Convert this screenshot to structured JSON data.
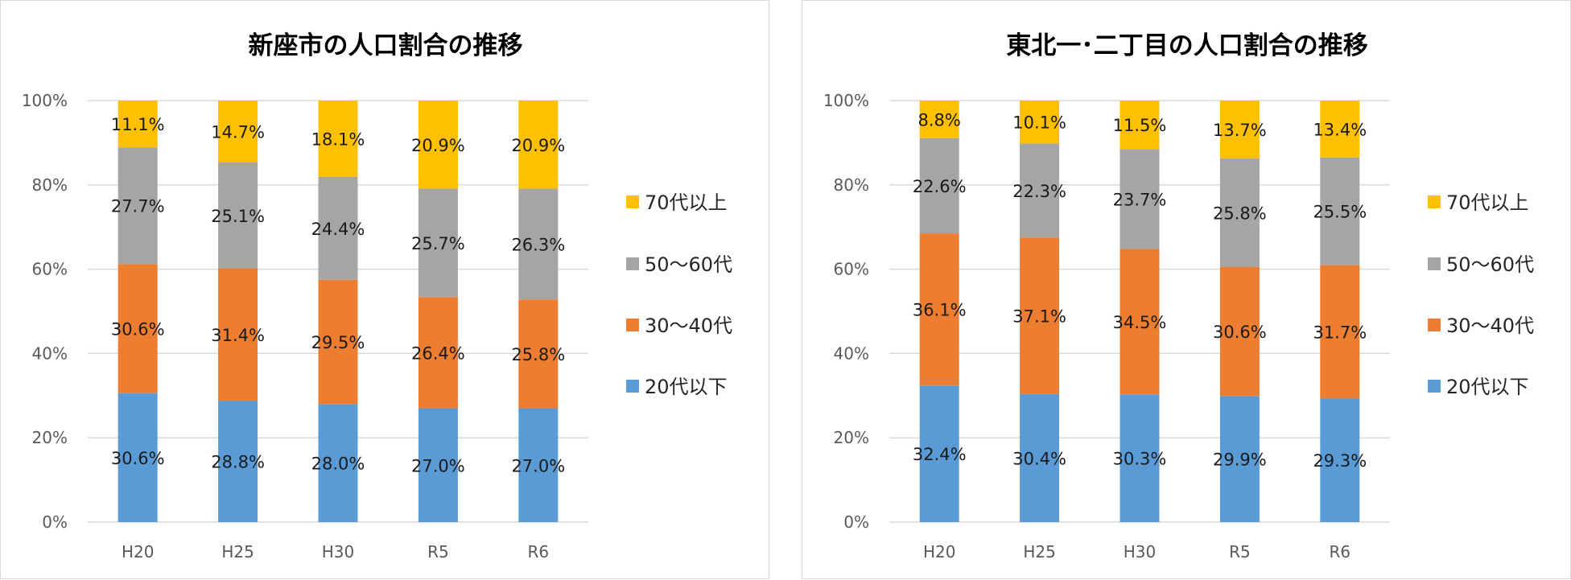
{
  "chart_data": [
    {
      "type": "bar",
      "stacked": true,
      "normalized": true,
      "title": "新座市の人口割合の推移",
      "categories": [
        "H20",
        "H25",
        "H30",
        "R5",
        "R6"
      ],
      "y_ticks": [
        "0%",
        "20%",
        "40%",
        "60%",
        "80%",
        "100%"
      ],
      "ylim": [
        0,
        100
      ],
      "grid": true,
      "legend_position": "right",
      "series": [
        {
          "name": "20代以下",
          "color": "#5b9bd5",
          "values": [
            30.6,
            28.8,
            28.0,
            27.0,
            27.0
          ],
          "labels": [
            "30.6%",
            "28.8%",
            "28.0%",
            "27.0%",
            "27.0%"
          ]
        },
        {
          "name": "30～40代",
          "color": "#ed7d31",
          "values": [
            30.6,
            31.4,
            29.5,
            26.4,
            25.8
          ],
          "labels": [
            "30.6%",
            "31.4%",
            "29.5%",
            "26.4%",
            "25.8%"
          ]
        },
        {
          "name": "50～60代",
          "color": "#a5a5a5",
          "values": [
            27.7,
            25.1,
            24.4,
            25.7,
            26.3
          ],
          "labels": [
            "27.7%",
            "25.1%",
            "24.4%",
            "25.7%",
            "26.3%"
          ]
        },
        {
          "name": "70代以上",
          "color": "#ffc000",
          "values": [
            11.1,
            14.7,
            18.1,
            20.9,
            20.9
          ],
          "labels": [
            "11.1%",
            "14.7%",
            "18.1%",
            "20.9%",
            "20.9%"
          ]
        }
      ]
    },
    {
      "type": "bar",
      "stacked": true,
      "normalized": true,
      "title": "東北一･二丁目の人口割合の推移",
      "categories": [
        "H20",
        "H25",
        "H30",
        "R5",
        "R6"
      ],
      "y_ticks": [
        "0%",
        "20%",
        "40%",
        "60%",
        "80%",
        "100%"
      ],
      "ylim": [
        0,
        100
      ],
      "grid": true,
      "legend_position": "right",
      "series": [
        {
          "name": "20代以下",
          "color": "#5b9bd5",
          "values": [
            32.4,
            30.4,
            30.3,
            29.9,
            29.3
          ],
          "labels": [
            "32.4%",
            "30.4%",
            "30.3%",
            "29.9%",
            "29.3%"
          ]
        },
        {
          "name": "30～40代",
          "color": "#ed7d31",
          "values": [
            36.1,
            37.1,
            34.5,
            30.6,
            31.7
          ],
          "labels": [
            "36.1%",
            "37.1%",
            "34.5%",
            "30.6%",
            "31.7%"
          ]
        },
        {
          "name": "50～60代",
          "color": "#a5a5a5",
          "values": [
            22.6,
            22.3,
            23.7,
            25.8,
            25.5
          ],
          "labels": [
            "22.6%",
            "22.3%",
            "23.7%",
            "25.8%",
            "25.5%"
          ]
        },
        {
          "name": "70代以上",
          "color": "#ffc000",
          "values": [
            8.8,
            10.1,
            11.5,
            13.7,
            13.4
          ],
          "labels": [
            "8.8%",
            "10.1%",
            "11.5%",
            "13.7%",
            "13.4%"
          ]
        }
      ]
    }
  ]
}
